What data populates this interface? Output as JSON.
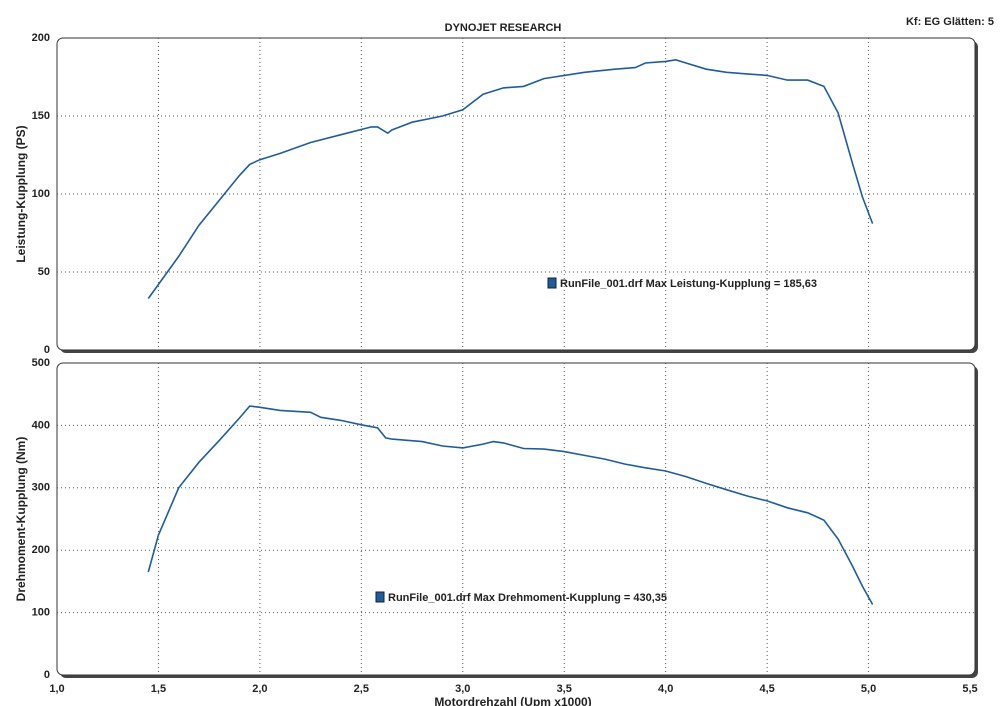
{
  "header": {
    "title": "DYNOJET RESEARCH",
    "settings": "Kf: EG  Glätten: 5"
  },
  "chart_data": [
    {
      "type": "line",
      "ylabel": "Leistung-Kupplung (PS)",
      "color": "#1f5c9e",
      "grid": true,
      "xlim": [
        1.0,
        5.5
      ],
      "xticks": [
        1.0,
        1.5,
        2.0,
        2.5,
        3.0,
        3.5,
        4.0,
        4.5,
        5.0,
        5.5
      ],
      "ylim": [
        0,
        200
      ],
      "yticks": [
        0,
        50,
        100,
        150,
        200
      ],
      "annotation": "RunFile_001.drf Max Leistung-Kupplung = 185,63",
      "x": [
        1.45,
        1.5,
        1.6,
        1.7,
        1.8,
        1.9,
        1.95,
        2.0,
        2.1,
        2.25,
        2.4,
        2.55,
        2.58,
        2.63,
        2.65,
        2.75,
        2.9,
        3.0,
        3.1,
        3.2,
        3.3,
        3.4,
        3.6,
        3.75,
        3.85,
        3.9,
        4.0,
        4.05,
        4.1,
        4.2,
        4.3,
        4.4,
        4.5,
        4.6,
        4.7,
        4.78,
        4.85,
        4.92,
        4.97,
        5.02
      ],
      "values": [
        33,
        42,
        60,
        80,
        96,
        112,
        119,
        122,
        126,
        133,
        138,
        143,
        143,
        139,
        141,
        146,
        150,
        154,
        164,
        168,
        169,
        174,
        178,
        180,
        181,
        184,
        185,
        186,
        184,
        180,
        178,
        177,
        176,
        173,
        173,
        169,
        152,
        120,
        98,
        81
      ]
    },
    {
      "type": "line",
      "ylabel": "Drehmoment-Kupplung (Nm)",
      "xlabel": "Motordrehzahl (Upm x1000)",
      "color": "#1f5c9e",
      "grid": true,
      "xlim": [
        1.0,
        5.5
      ],
      "xticks": [
        {
          "value": 1.0,
          "label": "1,0"
        },
        {
          "value": 1.5,
          "label": "1,5"
        },
        {
          "value": 2.0,
          "label": "2,0"
        },
        {
          "value": 2.5,
          "label": "2,5"
        },
        {
          "value": 3.0,
          "label": "3,0"
        },
        {
          "value": 3.5,
          "label": "3,5"
        },
        {
          "value": 4.0,
          "label": "4,0"
        },
        {
          "value": 4.5,
          "label": "4,5"
        },
        {
          "value": 5.0,
          "label": "5,0"
        },
        {
          "value": 5.5,
          "label": "5,5"
        }
      ],
      "ylim": [
        0,
        500
      ],
      "yticks": [
        0,
        100,
        200,
        300,
        400,
        500
      ],
      "annotation": "RunFile_001.drf Max Drehmoment-Kupplung = 430,35",
      "x": [
        1.45,
        1.5,
        1.6,
        1.7,
        1.8,
        1.9,
        1.95,
        2.0,
        2.1,
        2.25,
        2.3,
        2.4,
        2.5,
        2.58,
        2.62,
        2.65,
        2.8,
        2.9,
        3.0,
        3.1,
        3.15,
        3.2,
        3.3,
        3.4,
        3.5,
        3.6,
        3.7,
        3.8,
        3.9,
        4.0,
        4.1,
        4.2,
        4.3,
        4.4,
        4.5,
        4.6,
        4.7,
        4.78,
        4.85,
        4.92,
        4.97,
        5.02
      ],
      "values": [
        165,
        224,
        300,
        341,
        376,
        412,
        431,
        429,
        424,
        421,
        413,
        408,
        401,
        396,
        380,
        378,
        374,
        367,
        364,
        370,
        374,
        372,
        363,
        362,
        358,
        352,
        346,
        338,
        332,
        327,
        318,
        307,
        297,
        287,
        279,
        268,
        260,
        248,
        218,
        175,
        142,
        113
      ]
    }
  ]
}
